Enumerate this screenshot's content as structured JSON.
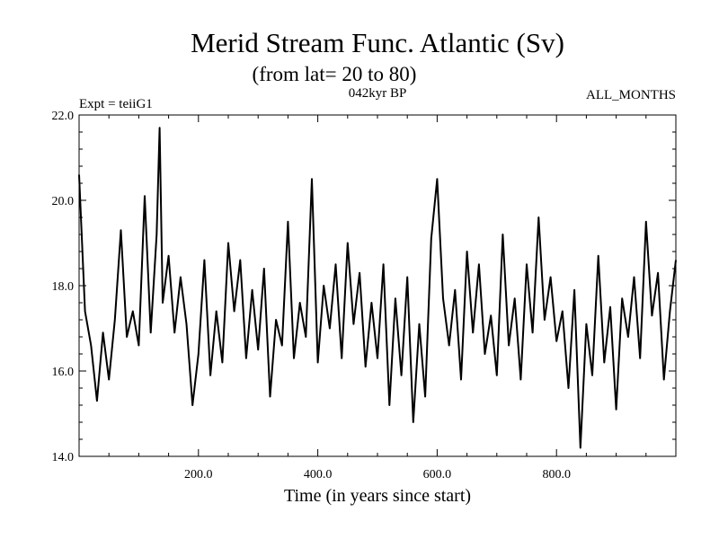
{
  "chart_data": {
    "type": "line",
    "title": "Merid Stream Func. Atlantic (Sv)",
    "subtitle": "(from lat= 20 to 80)",
    "experiment": "Expt = teiiG1",
    "period": "042kyr BP",
    "months": "ALL_MONTHS",
    "xlabel": "Time (in years since start)",
    "ylabel": "",
    "xlim": [
      0,
      1000
    ],
    "ylim": [
      14.0,
      22.0
    ],
    "x_ticks": [
      "200.0",
      "400.0",
      "600.0",
      "800.0"
    ],
    "x_tick_values": [
      200,
      400,
      600,
      800
    ],
    "y_ticks": [
      "14.0",
      "16.0",
      "18.0",
      "20.0",
      "22.0"
    ],
    "y_tick_values": [
      14,
      16,
      18,
      20,
      22
    ],
    "grid": false,
    "line_color": "#000000",
    "series": [
      {
        "x": [
          0,
          10,
          20,
          30,
          40,
          50,
          60,
          70,
          80,
          90,
          100,
          110,
          120,
          130,
          135,
          140,
          150,
          160,
          170,
          180,
          190,
          200,
          210,
          220,
          230,
          240,
          250,
          260,
          270,
          280,
          290,
          300,
          310,
          320,
          330,
          340,
          350,
          360,
          370,
          380,
          390,
          400,
          410,
          420,
          430,
          440,
          450,
          460,
          470,
          480,
          490,
          500,
          510,
          520,
          530,
          540,
          550,
          560,
          570,
          580,
          590,
          600,
          610,
          620,
          630,
          640,
          650,
          660,
          670,
          680,
          690,
          700,
          710,
          720,
          730,
          740,
          750,
          760,
          770,
          780,
          790,
          800,
          810,
          820,
          830,
          840,
          850,
          860,
          870,
          880,
          890,
          900,
          910,
          920,
          930,
          940,
          950,
          960,
          970,
          980,
          990,
          1000
        ],
        "values": [
          20.6,
          17.4,
          16.6,
          15.3,
          16.9,
          15.8,
          17.2,
          19.3,
          16.8,
          17.4,
          16.6,
          20.1,
          16.9,
          19.2,
          21.7,
          17.6,
          18.7,
          16.9,
          18.2,
          17.1,
          15.2,
          16.4,
          18.6,
          15.9,
          17.4,
          16.2,
          19.0,
          17.4,
          18.6,
          16.3,
          17.9,
          16.5,
          18.4,
          15.4,
          17.2,
          16.6,
          19.5,
          16.3,
          17.6,
          16.8,
          20.5,
          16.2,
          18.0,
          17.0,
          18.5,
          16.3,
          19.0,
          17.1,
          18.3,
          16.1,
          17.6,
          16.3,
          18.5,
          15.2,
          17.7,
          15.9,
          18.2,
          14.8,
          17.1,
          15.4,
          19.1,
          20.5,
          17.7,
          16.6,
          17.9,
          15.8,
          18.8,
          16.9,
          18.5,
          16.4,
          17.3,
          15.9,
          19.2,
          16.6,
          17.7,
          15.8,
          18.5,
          16.9,
          19.6,
          17.2,
          18.2,
          16.7,
          17.4,
          15.6,
          17.9,
          14.2,
          17.1,
          15.9,
          18.7,
          16.2,
          17.5,
          15.1,
          17.7,
          16.8,
          18.2,
          16.3,
          19.5,
          17.3,
          18.3,
          15.8,
          17.4,
          18.6
        ]
      }
    ]
  }
}
